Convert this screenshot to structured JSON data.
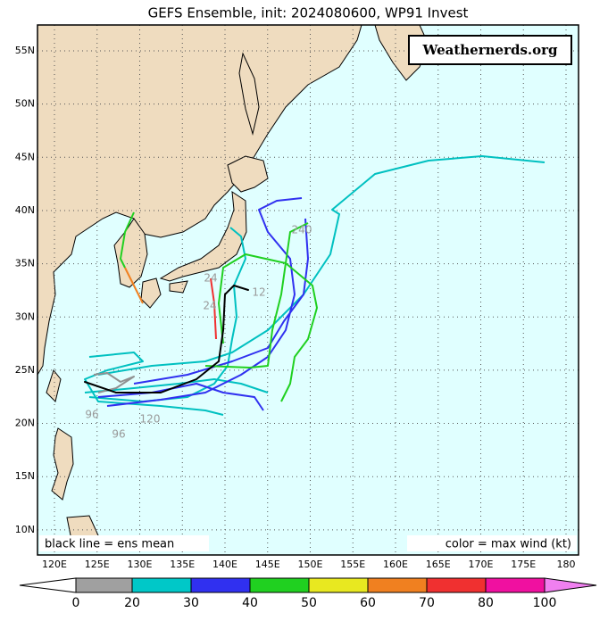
{
  "title": "GEFS Ensemble, init: 2024080600, WP91 Invest",
  "watermark": "Weathernerds.org",
  "lon_labels": [
    "120E",
    "125E",
    "130E",
    "135E",
    "140E",
    "145E",
    "150E",
    "155E",
    "160E",
    "165E",
    "170E",
    "175E",
    "180"
  ],
  "lat_labels": [
    "55N",
    "50N",
    "45N",
    "40N",
    "35N",
    "30N",
    "25N",
    "20N",
    "15N",
    "10N"
  ],
  "legend": {
    "left": "black line = ens mean",
    "right": "color = max wind (kt)"
  },
  "colorbar": {
    "labels": [
      0,
      20,
      30,
      40,
      50,
      60,
      70,
      80,
      100
    ]
  },
  "track_labels": [
    "96",
    "96",
    "120",
    "240",
    "24",
    "24",
    "12"
  ]
}
